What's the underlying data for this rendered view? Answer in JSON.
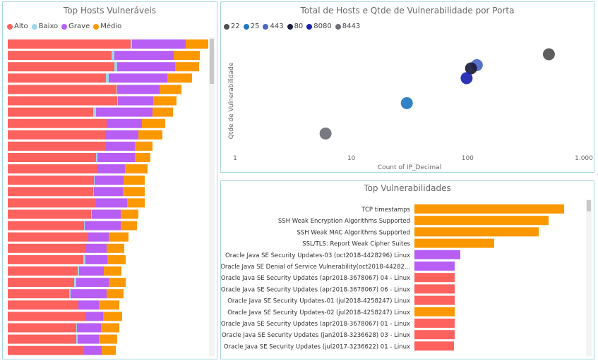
{
  "hosts_panel": {
    "title": "Top Hosts Vulneráveis",
    "legend": [
      {
        "label": "Alto",
        "color": "#fd625e"
      },
      {
        "label": "Baixo",
        "color": "#a0d7e7"
      },
      {
        "label": "Grave",
        "color": "#b85ef5"
      },
      {
        "label": "Médio",
        "color": "#fb9800"
      }
    ]
  },
  "scatter_panel": {
    "title": "Total de Hosts e Qtde de Vulnerabilidade por Porta",
    "legend": [
      {
        "label": "22",
        "color": "#505050"
      },
      {
        "label": "25",
        "color": "#1f78c1"
      },
      {
        "label": "443",
        "color": "#4a65c4"
      },
      {
        "label": "80",
        "color": "#1c1d3b"
      },
      {
        "label": "8080",
        "color": "#1a23b0"
      },
      {
        "label": "8443",
        "color": "#6e6e78"
      }
    ]
  },
  "vuln_panel": {
    "title": "Top Vulnerabilidades"
  },
  "chart_data": [
    {
      "type": "bar",
      "orientation": "horizontal",
      "stacked": true,
      "title": "Top Hosts Vulneráveis",
      "series_order": [
        "Alto",
        "Baixo",
        "Grave",
        "Médio"
      ],
      "series_colors": [
        "#fd625e",
        "#a0d7e7",
        "#b85ef5",
        "#fb9800"
      ],
      "rows": [
        [
          174,
          2,
          76,
          32
        ],
        [
          147,
          4,
          84,
          37
        ],
        [
          151,
          4,
          82,
          34
        ],
        [
          139,
          4,
          83,
          35
        ],
        [
          154,
          1,
          60,
          31
        ],
        [
          155,
          1,
          50,
          33
        ],
        [
          121,
          4,
          80,
          29
        ],
        [
          140,
          0,
          50,
          33
        ],
        [
          138,
          0,
          47,
          34
        ],
        [
          139,
          0,
          41,
          25
        ],
        [
          125,
          2,
          53,
          22
        ],
        [
          128,
          0,
          38,
          32
        ],
        [
          122,
          1,
          41,
          30
        ],
        [
          121,
          1,
          41,
          31
        ],
        [
          125,
          0,
          44,
          25
        ],
        [
          118,
          1,
          41,
          25
        ],
        [
          108,
          1,
          51,
          23
        ],
        [
          114,
          0,
          29,
          28
        ],
        [
          111,
          0,
          29,
          25
        ],
        [
          107,
          3,
          31,
          26
        ],
        [
          99,
          2,
          35,
          25
        ],
        [
          94,
          3,
          46,
          24
        ],
        [
          87,
          2,
          51,
          24
        ],
        [
          100,
          0,
          29,
          29
        ],
        [
          110,
          0,
          25,
          27
        ],
        [
          97,
          1,
          34,
          26
        ],
        [
          97,
          2,
          30,
          26
        ],
        [
          108,
          0,
          25,
          20
        ]
      ]
    },
    {
      "type": "scatter",
      "title": "Total de Hosts e Qtde de Vulnerabilidade por Porta",
      "xlabel": "Count of IP_Decimal",
      "ylabel": "Qtde de Vulnerabilidade",
      "xscale": "log",
      "xlim": [
        1,
        1000
      ],
      "xticks": [
        "1",
        "10",
        "100",
        "1.000"
      ],
      "points": [
        {
          "series": "22",
          "x": 500,
          "y": 0.87
        },
        {
          "series": "443",
          "x": 120,
          "y": 0.77
        },
        {
          "series": "80",
          "x": 107,
          "y": 0.74
        },
        {
          "series": "8080",
          "x": 98,
          "y": 0.65
        },
        {
          "series": "25",
          "x": 30,
          "y": 0.42
        },
        {
          "series": "8443",
          "x": 6,
          "y": 0.14
        }
      ]
    },
    {
      "type": "bar",
      "orientation": "horizontal",
      "title": "Top Vulnerabilidades",
      "categories": [
        "TCP timestamps",
        "SSH Weak Encryption Algorithms Supported",
        "SSH Weak MAC Algorithms Supported",
        "SSL/TLS: Report Weak Cipher Suites",
        "Oracle Java SE Security Updates-03 (oct2018-4428296) Linux",
        "Oracle Java SE Denial of Service Vulnerability(oct2018-44282...",
        "Oracle Java SE Security Updates (apr2018-3678067) 04 - Linux",
        "Oracle Java SE Security Updates (apr2018-3678067) 06 - Linux",
        "Oracle Java SE Security Updates-01 (jul2018-4258247) Linux",
        "Oracle Java SE Security Updates-02 (jul2018-4258247) Linux",
        "Oracle Java SE Security Updates (apr2018-3678067) 01 - Linux",
        "Oracle Java SE Security Updates (jan2018-3236628) 03 - Linux",
        "Oracle Java SE Security Updates (jul2017-3236622) 01 - Linux"
      ],
      "values": [
        212,
        190,
        176,
        113,
        65,
        57,
        57,
        57,
        57,
        57,
        57,
        57,
        56
      ],
      "colors": [
        "#fb9800",
        "#fb9800",
        "#fb9800",
        "#fb9800",
        "#b85ef5",
        "#b85ef5",
        "#fd625e",
        "#fd625e",
        "#fd625e",
        "#fb9800",
        "#fd625e",
        "#fd625e",
        "#fd625e"
      ]
    }
  ]
}
